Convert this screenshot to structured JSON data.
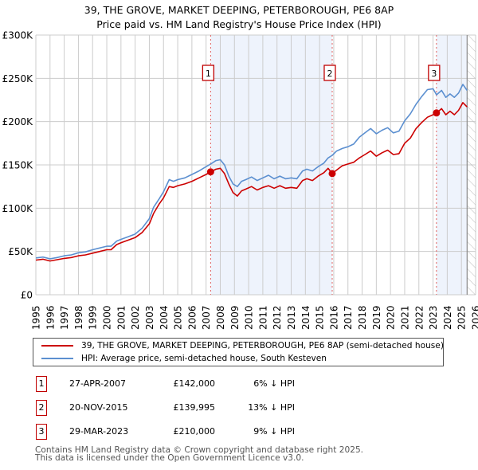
{
  "title_line1": "39, THE GROVE, MARKET DEEPING, PETERBOROUGH, PE6 8AP",
  "title_line2": "Price paid vs. HM Land Registry's House Price Index (HPI)",
  "colors": {
    "property": "#cc0000",
    "hpi": "#5b8fd0",
    "shade": "#eef3fc",
    "marker_border": "#c00000",
    "grid": "#cccccc"
  },
  "chart_data": {
    "type": "line",
    "title": "Price paid vs. HM Land Registry's House Price Index (HPI)",
    "xlabel": "",
    "ylabel": "",
    "xlim": [
      1995,
      2026
    ],
    "ylim": [
      0,
      300000
    ],
    "grid": true,
    "x_ticks": [
      "1995",
      "1996",
      "1997",
      "1998",
      "1999",
      "2000",
      "2001",
      "2002",
      "2003",
      "2004",
      "2005",
      "2006",
      "2007",
      "2008",
      "2009",
      "2010",
      "2011",
      "2012",
      "2013",
      "2014",
      "2015",
      "2016",
      "2017",
      "2018",
      "2019",
      "2020",
      "2021",
      "2022",
      "2023",
      "2024",
      "2025",
      "2026"
    ],
    "y_ticks": [
      {
        "value": 0,
        "label": "£0"
      },
      {
        "value": 50000,
        "label": "£50K"
      },
      {
        "value": 100000,
        "label": "£100K"
      },
      {
        "value": 150000,
        "label": "£150K"
      },
      {
        "value": 200000,
        "label": "£200K"
      },
      {
        "value": 250000,
        "label": "£250K"
      },
      {
        "value": 300000,
        "label": "£300K"
      }
    ],
    "data_end": 2025.4,
    "series": [
      {
        "name": "39, THE GROVE, MARKET DEEPING, PETERBOROUGH, PE6 8AP (semi-detached house)",
        "key": "property",
        "x": [
          1995.0,
          1995.5,
          1996.0,
          1996.5,
          1997.0,
          1997.5,
          1998.0,
          1998.5,
          1999.0,
          1999.5,
          2000.0,
          2000.3,
          2000.7,
          2001.0,
          2001.5,
          2002.0,
          2002.5,
          2003.0,
          2003.3,
          2003.7,
          2004.0,
          2004.4,
          2004.7,
          2005.0,
          2005.5,
          2006.0,
          2006.5,
          2007.0,
          2007.32,
          2007.7,
          2008.0,
          2008.3,
          2008.6,
          2008.9,
          2009.2,
          2009.5,
          2009.8,
          2010.2,
          2010.6,
          2011.0,
          2011.4,
          2011.8,
          2012.2,
          2012.6,
          2013.0,
          2013.4,
          2013.8,
          2014.1,
          2014.5,
          2014.9,
          2015.3,
          2015.6,
          2015.89,
          2016.2,
          2016.6,
          2017.0,
          2017.4,
          2017.8,
          2018.2,
          2018.6,
          2019.0,
          2019.4,
          2019.8,
          2020.2,
          2020.6,
          2021.0,
          2021.4,
          2021.8,
          2022.2,
          2022.6,
          2023.0,
          2023.24,
          2023.6,
          2023.9,
          2024.2,
          2024.5,
          2024.8,
          2025.1,
          2025.4
        ],
        "y": [
          40000,
          41000,
          39000,
          40500,
          42000,
          43000,
          45000,
          46000,
          48000,
          50000,
          52000,
          52000,
          58000,
          60000,
          63000,
          66000,
          72000,
          82000,
          94000,
          105000,
          112000,
          125000,
          124000,
          126000,
          128000,
          131000,
          135000,
          139000,
          142000,
          145000,
          146000,
          140000,
          128000,
          118000,
          114000,
          120000,
          122000,
          125000,
          121000,
          124000,
          126000,
          123000,
          126000,
          123000,
          124000,
          123000,
          132000,
          134000,
          132000,
          137000,
          141000,
          146000,
          139995,
          144000,
          149000,
          151000,
          153000,
          158000,
          162000,
          166000,
          160000,
          164000,
          167000,
          162000,
          163000,
          175000,
          181000,
          192000,
          199000,
          205000,
          208000,
          210000,
          215000,
          208000,
          212000,
          208000,
          213000,
          222000,
          217000
        ]
      },
      {
        "name": "HPI: Average price, semi-detached house, South Kesteven",
        "key": "hpi",
        "x": [
          1995.0,
          1995.5,
          1996.0,
          1996.5,
          1997.0,
          1997.5,
          1998.0,
          1998.5,
          1999.0,
          1999.5,
          2000.0,
          2000.3,
          2000.7,
          2001.0,
          2001.5,
          2002.0,
          2002.5,
          2003.0,
          2003.3,
          2003.7,
          2004.0,
          2004.4,
          2004.7,
          2005.0,
          2005.5,
          2006.0,
          2006.5,
          2007.0,
          2007.32,
          2007.7,
          2008.0,
          2008.3,
          2008.6,
          2008.9,
          2009.2,
          2009.5,
          2009.8,
          2010.2,
          2010.6,
          2011.0,
          2011.4,
          2011.8,
          2012.2,
          2012.6,
          2013.0,
          2013.4,
          2013.8,
          2014.1,
          2014.5,
          2014.9,
          2015.3,
          2015.6,
          2015.89,
          2016.2,
          2016.6,
          2017.0,
          2017.4,
          2017.8,
          2018.2,
          2018.6,
          2019.0,
          2019.4,
          2019.8,
          2020.2,
          2020.6,
          2021.0,
          2021.4,
          2021.8,
          2022.2,
          2022.6,
          2023.0,
          2023.24,
          2023.6,
          2023.9,
          2024.2,
          2024.5,
          2024.8,
          2025.1,
          2025.4
        ],
        "y": [
          42500,
          43500,
          41500,
          43000,
          45000,
          46000,
          48500,
          49500,
          52000,
          54000,
          56000,
          56000,
          62000,
          64000,
          67000,
          70000,
          77000,
          88000,
          101000,
          111000,
          119000,
          133000,
          131000,
          133000,
          135000,
          139000,
          143000,
          148000,
          151000,
          155000,
          156000,
          150000,
          137000,
          128000,
          125000,
          131000,
          133000,
          136000,
          132000,
          135000,
          138000,
          134000,
          137000,
          134000,
          135000,
          134000,
          143000,
          145000,
          143000,
          148000,
          152000,
          158000,
          161000,
          166000,
          169000,
          171000,
          174000,
          182000,
          187000,
          192000,
          186000,
          190000,
          193000,
          187000,
          189000,
          201000,
          209000,
          220000,
          229000,
          237000,
          238000,
          231000,
          236000,
          228000,
          232000,
          228000,
          233000,
          243000,
          236000
        ]
      }
    ],
    "sales": [
      {
        "id": "1",
        "x": 2007.32,
        "price": 142000
      },
      {
        "id": "2",
        "x": 2015.89,
        "price": 139995
      },
      {
        "id": "3",
        "x": 2023.24,
        "price": 210000
      }
    ],
    "shaded_ranges": [
      [
        2007.32,
        2015.89
      ],
      [
        2023.24,
        2025.4
      ]
    ],
    "legend": "bottom"
  },
  "legend": {
    "property_label": "39, THE GROVE, MARKET DEEPING, PETERBOROUGH, PE6 8AP (semi-detached house)",
    "hpi_label": "HPI: Average price, semi-detached house, South Kesteven"
  },
  "transactions": [
    {
      "num": "1",
      "date": "27-APR-2007",
      "price": "£142,000",
      "hpi": "6% ↓ HPI"
    },
    {
      "num": "2",
      "date": "20-NOV-2015",
      "price": "£139,995",
      "hpi": "13% ↓ HPI"
    },
    {
      "num": "3",
      "date": "29-MAR-2023",
      "price": "£210,000",
      "hpi": "9% ↓ HPI"
    }
  ],
  "footer": {
    "line1": "Contains HM Land Registry data © Crown copyright and database right 2025.",
    "line2": "This data is licensed under the Open Government Licence v3.0."
  }
}
